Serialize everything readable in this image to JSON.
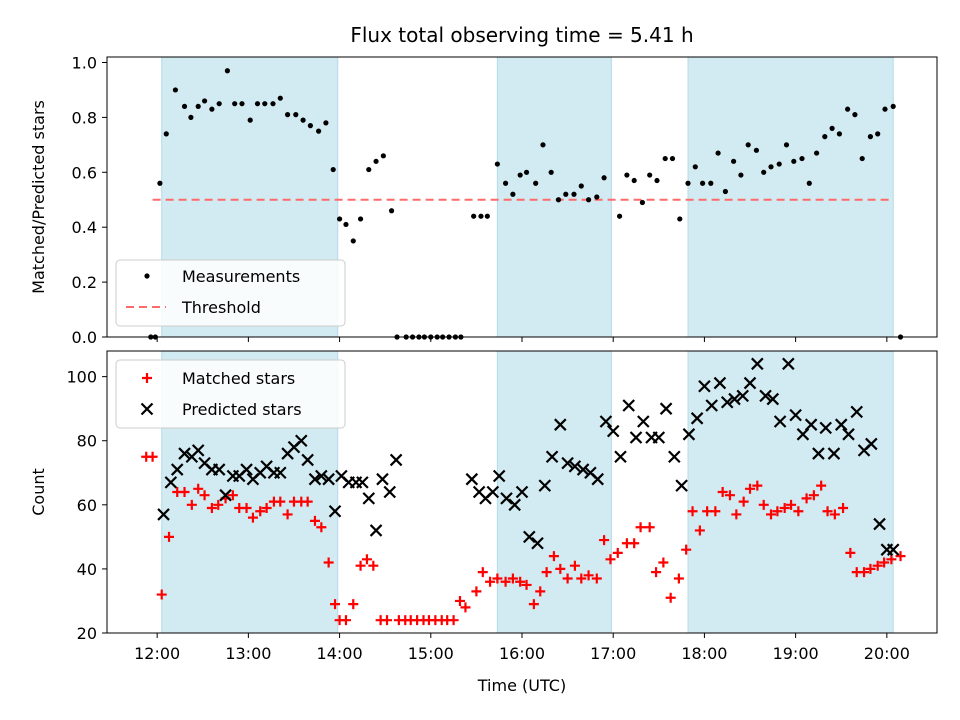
{
  "chart_data": {
    "type": "scatter",
    "title": "Flux total observing time = 5.41 h",
    "xlabel": "Time (UTC)",
    "x_ticks": [
      "12:00",
      "13:00",
      "14:00",
      "15:00",
      "16:00",
      "17:00",
      "18:00",
      "19:00",
      "20:00"
    ],
    "x_range_hours": [
      11.45,
      20.55
    ],
    "colors": {
      "band": "#add8e6",
      "measurements": "#000000",
      "threshold": "#ff6b6b",
      "matched": "#ff0000",
      "predicted": "#000000"
    },
    "shaded_intervals_hours": [
      [
        12.05,
        13.98
      ],
      [
        15.73,
        16.98
      ],
      [
        17.82,
        20.07
      ]
    ],
    "panels": [
      {
        "name": "ratio",
        "ylabel": "Matched/Predicted stars",
        "ylim": [
          0,
          1.02
        ],
        "y_ticks": [
          "0.0",
          "0.2",
          "0.4",
          "0.6",
          "0.8",
          "1.0"
        ],
        "y_tick_values": [
          0,
          0.2,
          0.4,
          0.6,
          0.8,
          1.0
        ],
        "legend_placement": "lower-left",
        "legend": [
          "Measurements",
          "Threshold"
        ],
        "threshold": {
          "label": "Threshold",
          "y": 0.5,
          "x_range_hours": [
            11.95,
            20.05
          ]
        },
        "series": [
          {
            "name": "Measurements",
            "marker": "dot",
            "x_hours": [
              11.93,
              11.98,
              12.03,
              12.1,
              12.2,
              12.3,
              12.37,
              12.45,
              12.52,
              12.6,
              12.68,
              12.77,
              12.85,
              12.93,
              13.02,
              13.1,
              13.18,
              13.27,
              13.35,
              13.43,
              13.52,
              13.6,
              13.68,
              13.77,
              13.85,
              13.93,
              14.0,
              14.07,
              14.15,
              14.23,
              14.32,
              14.4,
              14.48,
              14.57,
              14.63,
              14.73,
              14.8,
              14.87,
              14.93,
              15.0,
              15.07,
              15.13,
              15.2,
              15.27,
              15.33,
              15.47,
              15.55,
              15.62,
              15.73,
              15.82,
              15.9,
              15.98,
              16.05,
              16.15,
              16.23,
              16.32,
              16.4,
              16.48,
              16.57,
              16.65,
              16.73,
              16.82,
              16.9,
              17.07,
              17.15,
              17.23,
              17.32,
              17.4,
              17.48,
              17.57,
              17.65,
              17.73,
              17.82,
              17.9,
              17.98,
              18.07,
              18.15,
              18.23,
              18.32,
              18.4,
              18.48,
              18.57,
              18.65,
              18.73,
              18.82,
              18.9,
              18.98,
              19.07,
              19.15,
              19.23,
              19.32,
              19.4,
              19.48,
              19.57,
              19.65,
              19.73,
              19.82,
              19.9,
              19.98,
              20.07,
              20.15
            ],
            "y": [
              0.0,
              0.0,
              0.56,
              0.74,
              0.9,
              0.84,
              0.8,
              0.84,
              0.86,
              0.83,
              0.85,
              0.97,
              0.85,
              0.85,
              0.79,
              0.85,
              0.85,
              0.85,
              0.87,
              0.81,
              0.81,
              0.79,
              0.77,
              0.75,
              0.78,
              0.61,
              0.43,
              0.41,
              0.35,
              0.43,
              0.61,
              0.64,
              0.66,
              0.46,
              0.0,
              0.0,
              0.0,
              0.0,
              0.0,
              0.0,
              0.0,
              0.0,
              0.0,
              0.0,
              0.0,
              0.44,
              0.44,
              0.44,
              0.63,
              0.56,
              0.52,
              0.59,
              0.6,
              0.56,
              0.7,
              0.6,
              0.5,
              0.52,
              0.52,
              0.55,
              0.5,
              0.51,
              0.58,
              0.44,
              0.59,
              0.57,
              0.49,
              0.59,
              0.57,
              0.65,
              0.65,
              0.43,
              0.56,
              0.62,
              0.56,
              0.56,
              0.67,
              0.53,
              0.64,
              0.59,
              0.7,
              0.68,
              0.6,
              0.62,
              0.63,
              0.7,
              0.64,
              0.65,
              0.56,
              0.67,
              0.73,
              0.76,
              0.74,
              0.83,
              0.81,
              0.65,
              0.73,
              0.74,
              0.83,
              0.84,
              0.0
            ]
          }
        ]
      },
      {
        "name": "counts",
        "ylabel": "Count",
        "ylim": [
          20,
          108
        ],
        "y_ticks": [
          "20",
          "40",
          "60",
          "80",
          "100"
        ],
        "y_tick_values": [
          20,
          40,
          60,
          80,
          100
        ],
        "legend_placement": "upper-left",
        "legend": [
          "Matched stars",
          "Predicted stars"
        ],
        "series": [
          {
            "name": "Matched stars",
            "marker": "plus",
            "x_hours": [
              11.88,
              11.95,
              12.05,
              12.13,
              12.22,
              12.3,
              12.38,
              12.45,
              12.52,
              12.6,
              12.67,
              12.75,
              12.83,
              12.9,
              12.98,
              13.05,
              13.13,
              13.2,
              13.28,
              13.35,
              13.43,
              13.5,
              13.58,
              13.65,
              13.73,
              13.8,
              13.88,
              13.95,
              14.0,
              14.07,
              14.15,
              14.23,
              14.3,
              14.37,
              14.45,
              14.52,
              14.65,
              14.72,
              14.78,
              14.85,
              14.92,
              14.98,
              15.05,
              15.12,
              15.18,
              15.25,
              15.32,
              15.38,
              15.5,
              15.57,
              15.65,
              15.73,
              15.82,
              15.9,
              15.98,
              16.05,
              16.13,
              16.2,
              16.27,
              16.35,
              16.42,
              16.5,
              16.58,
              16.65,
              16.73,
              16.82,
              16.9,
              16.97,
              17.05,
              17.15,
              17.23,
              17.3,
              17.4,
              17.47,
              17.55,
              17.63,
              17.72,
              17.8,
              17.87,
              17.95,
              18.03,
              18.12,
              18.2,
              18.28,
              18.35,
              18.43,
              18.5,
              18.58,
              18.65,
              18.73,
              18.8,
              18.88,
              18.95,
              19.03,
              19.12,
              19.2,
              19.28,
              19.35,
              19.43,
              19.52,
              19.6,
              19.67,
              19.75,
              19.82,
              19.9,
              19.97,
              20.05,
              20.15
            ],
            "y": [
              75,
              75,
              32,
              50,
              64,
              64,
              60,
              65,
              63,
              59,
              60,
              62,
              63,
              59,
              59,
              56,
              58,
              59,
              61,
              61,
              57,
              61,
              61,
              61,
              55,
              53,
              42,
              29,
              24,
              24,
              29,
              41,
              43,
              41,
              24,
              24,
              24,
              24,
              24,
              24,
              24,
              24,
              24,
              24,
              24,
              24,
              30,
              28,
              33,
              39,
              36,
              37,
              36,
              37,
              36,
              35,
              29,
              33,
              39,
              44,
              40,
              37,
              41,
              37,
              38,
              37,
              49,
              43,
              45,
              48,
              48,
              53,
              53,
              39,
              42,
              31,
              37,
              46,
              58,
              52,
              58,
              58,
              64,
              63,
              57,
              61,
              65,
              66,
              60,
              57,
              58,
              59,
              60,
              58,
              62,
              63,
              66,
              58,
              57,
              59,
              45,
              39,
              39,
              40,
              41,
              42,
              43,
              44
            ]
          },
          {
            "name": "Predicted stars",
            "marker": "x",
            "x_hours": [
              12.07,
              12.15,
              12.22,
              12.3,
              12.38,
              12.45,
              12.52,
              12.6,
              12.68,
              12.75,
              12.83,
              12.9,
              12.98,
              13.05,
              13.13,
              13.2,
              13.28,
              13.35,
              13.43,
              13.5,
              13.58,
              13.65,
              13.73,
              13.8,
              13.88,
              13.95,
              14.02,
              14.1,
              14.18,
              14.25,
              14.32,
              14.4,
              14.47,
              14.55,
              14.62,
              15.45,
              15.53,
              15.6,
              15.68,
              15.75,
              15.83,
              15.92,
              16.0,
              16.08,
              16.17,
              16.25,
              16.33,
              16.42,
              16.5,
              16.58,
              16.67,
              16.75,
              16.83,
              16.92,
              17.0,
              17.08,
              17.17,
              17.25,
              17.33,
              17.42,
              17.5,
              17.58,
              17.67,
              17.75,
              17.83,
              17.92,
              18.0,
              18.08,
              18.17,
              18.25,
              18.33,
              18.42,
              18.5,
              18.58,
              18.67,
              18.75,
              18.83,
              18.92,
              19.0,
              19.08,
              19.17,
              19.25,
              19.33,
              19.42,
              19.5,
              19.58,
              19.67,
              19.75,
              19.83,
              19.92,
              20.0,
              20.07
            ],
            "y": [
              57,
              67,
              71,
              76,
              75,
              77,
              73,
              71,
              71,
              63,
              69,
              69,
              71,
              68,
              70,
              72,
              70,
              70,
              76,
              78,
              80,
              74,
              68,
              69,
              68,
              58,
              69,
              67,
              67,
              67,
              62,
              52,
              68,
              64,
              74,
              68,
              64,
              62,
              64,
              69,
              62,
              60,
              64,
              50,
              48,
              66,
              75,
              85,
              73,
              72,
              71,
              70,
              68,
              86,
              83,
              75,
              91,
              81,
              86,
              81,
              81,
              90,
              75,
              66,
              82,
              87,
              97,
              91,
              98,
              92,
              93,
              94,
              98,
              104,
              94,
              93,
              86,
              104,
              88,
              82,
              85,
              76,
              84,
              76,
              85,
              82,
              89,
              77,
              79,
              54,
              46,
              46
            ]
          }
        ]
      }
    ]
  }
}
